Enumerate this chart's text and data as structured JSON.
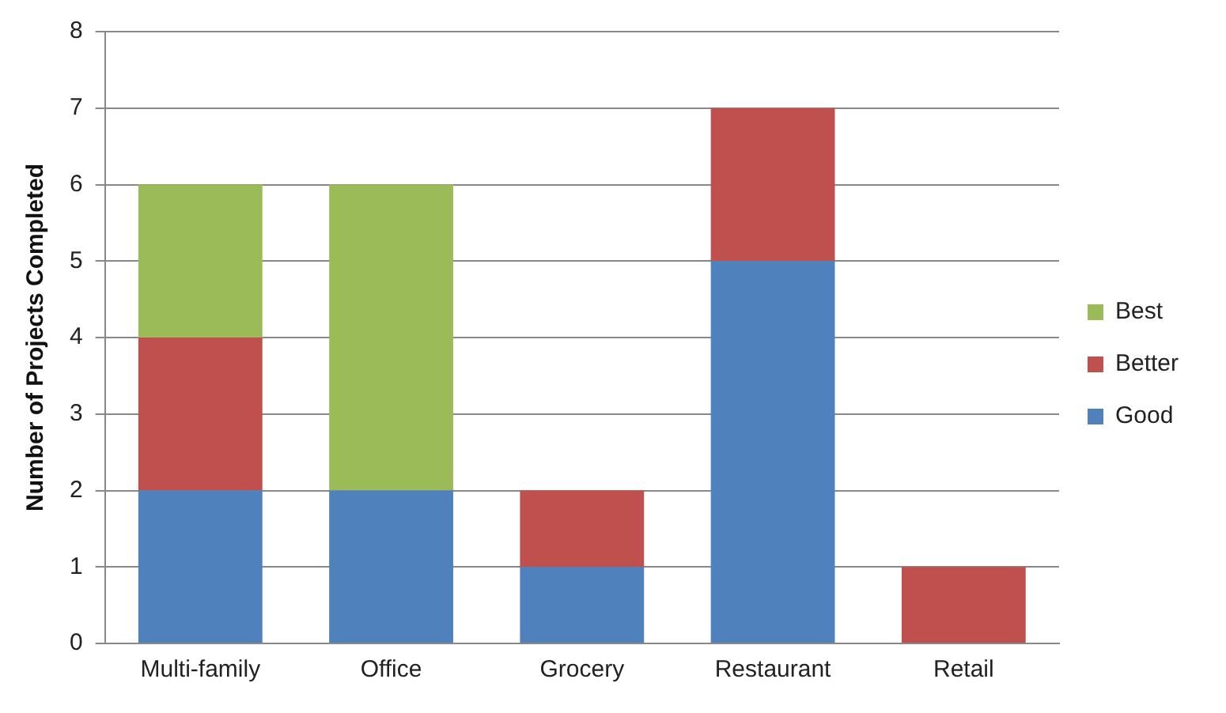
{
  "chart_data": {
    "type": "bar",
    "ylabel": "Number of Projects Completed",
    "categories": [
      "Multi-family",
      "Office",
      "Grocery",
      "Restaurant",
      "Retail"
    ],
    "series": [
      {
        "name": "Good",
        "color": "#4f81bd",
        "values": [
          2,
          2,
          1,
          5,
          0
        ]
      },
      {
        "name": "Better",
        "color": "#c0504d",
        "values": [
          2,
          0,
          1,
          2,
          1
        ]
      },
      {
        "name": "Best",
        "color": "#9bbb59",
        "values": [
          2,
          4,
          0,
          0,
          0
        ]
      }
    ],
    "stacked": true,
    "ylim": [
      0,
      8
    ],
    "yticks": [
      0,
      1,
      2,
      3,
      4,
      5,
      6,
      7,
      8
    ],
    "grid": "y",
    "legend": "right"
  }
}
